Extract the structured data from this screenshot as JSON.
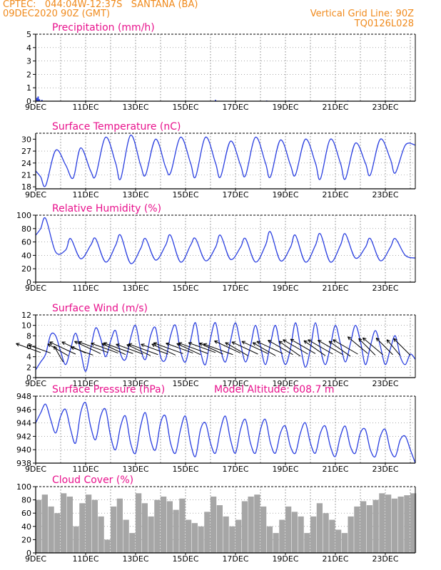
{
  "header": {
    "line1": "CPTEC:   044:04W-12:37S   SANTANA (BA)",
    "line2": "09DEC2020 90Z (GMT)",
    "grid_note": "Vertical Grid Line: 90Z",
    "code": "TQ0126L028"
  },
  "colors": {
    "header": "#f08a1c",
    "title": "#e8118c",
    "line": "#2a3fe0",
    "bar": "#a6a6a6",
    "text": "#000000"
  },
  "x_axis": {
    "labels": [
      "9DEC",
      "11DEC",
      "13DEC",
      "15DEC",
      "17DEC",
      "19DEC",
      "21DEC",
      "23DEC"
    ],
    "day_start": 9,
    "day_end": 24.2
  },
  "chart_data": [
    {
      "type": "bar",
      "title": "Precipitation (mm/h)",
      "ylim": [
        0,
        5
      ],
      "yticks": [
        0,
        1,
        2,
        3,
        4,
        5
      ],
      "x": [
        9.05,
        9.1,
        9.15,
        9.25,
        16.2,
        18.25,
        19.15,
        21.5,
        23.3
      ],
      "values": [
        0.25,
        0.35,
        0.15,
        0.1,
        0.1,
        0.05,
        0.05,
        0.05,
        0.05
      ]
    },
    {
      "type": "line",
      "title": "Surface Temperature (nC)",
      "ylim": [
        17.5,
        31.5
      ],
      "yticks": [
        18,
        21,
        24,
        27,
        30
      ],
      "x": [
        9.0,
        9.2,
        9.4,
        9.8,
        10.2,
        10.5,
        10.8,
        11.2,
        11.4,
        11.8,
        12.2,
        12.4,
        12.8,
        13.2,
        13.4,
        13.8,
        14.2,
        14.4,
        14.8,
        15.2,
        15.4,
        15.8,
        16.2,
        16.4,
        16.8,
        17.2,
        17.4,
        17.8,
        18.2,
        18.4,
        18.8,
        19.2,
        19.4,
        19.8,
        20.2,
        20.4,
        20.8,
        21.2,
        21.4,
        21.8,
        22.2,
        22.4,
        22.8,
        23.2,
        23.4,
        23.8,
        24.2
      ],
      "values": [
        22.0,
        20.5,
        18.3,
        27.2,
        23.5,
        20.2,
        27.8,
        22.0,
        20.8,
        30.5,
        24.0,
        20.0,
        31.0,
        23.5,
        21.0,
        30.0,
        23.0,
        21.5,
        30.5,
        24.0,
        20.5,
        30.5,
        24.0,
        20.5,
        29.5,
        23.5,
        20.8,
        30.5,
        24.0,
        20.5,
        29.8,
        23.5,
        21.0,
        30.0,
        24.0,
        20.0,
        30.0,
        24.0,
        20.0,
        29.0,
        24.0,
        21.0,
        30.0,
        25.0,
        21.5,
        28.5,
        28.5
      ]
    },
    {
      "type": "line",
      "title": "Relative Humidity (%)",
      "ylim": [
        0,
        100
      ],
      "yticks": [
        0,
        20,
        40,
        60,
        80,
        100
      ],
      "x": [
        9.0,
        9.2,
        9.4,
        9.8,
        10.2,
        10.4,
        10.8,
        11.2,
        11.4,
        11.8,
        12.2,
        12.4,
        12.8,
        13.2,
        13.4,
        13.8,
        14.2,
        14.4,
        14.8,
        15.2,
        15.4,
        15.8,
        16.2,
        16.4,
        16.8,
        17.2,
        17.4,
        17.8,
        18.2,
        18.4,
        18.8,
        19.2,
        19.4,
        19.8,
        20.2,
        20.4,
        20.8,
        21.2,
        21.4,
        21.8,
        22.2,
        22.4,
        22.8,
        23.2,
        23.4,
        23.8,
        24.2
      ],
      "values": [
        70,
        80,
        95,
        45,
        48,
        65,
        35,
        55,
        65,
        30,
        55,
        70,
        28,
        50,
        65,
        33,
        55,
        70,
        30,
        55,
        65,
        32,
        52,
        70,
        34,
        52,
        65,
        30,
        55,
        75,
        32,
        52,
        70,
        30,
        55,
        72,
        30,
        55,
        72,
        36,
        52,
        65,
        32,
        52,
        65,
        40,
        36
      ]
    },
    {
      "type": "line",
      "title": "Surface Wind (m/s)",
      "ylim": [
        0,
        12
      ],
      "yticks": [
        0,
        2,
        4,
        6,
        8,
        10,
        12
      ],
      "x": [
        9.0,
        9.2,
        9.4,
        9.6,
        9.8,
        10.0,
        10.2,
        10.4,
        10.6,
        10.8,
        11.0,
        11.2,
        11.4,
        11.6,
        11.8,
        12.0,
        12.2,
        12.4,
        12.6,
        12.8,
        13.0,
        13.2,
        13.4,
        13.6,
        13.8,
        14.0,
        14.2,
        14.4,
        14.6,
        14.8,
        15.0,
        15.2,
        15.4,
        15.6,
        15.8,
        16.0,
        16.2,
        16.4,
        16.6,
        16.8,
        17.0,
        17.2,
        17.4,
        17.6,
        17.8,
        18.0,
        18.2,
        18.4,
        18.6,
        18.8,
        19.0,
        19.2,
        19.4,
        19.6,
        19.8,
        20.0,
        20.2,
        20.4,
        20.6,
        20.8,
        21.0,
        21.2,
        21.4,
        21.6,
        21.8,
        22.0,
        22.2,
        22.4,
        22.6,
        22.8,
        23.0,
        23.2,
        23.4,
        23.6,
        23.8,
        24.0,
        24.2
      ],
      "values": [
        1.5,
        3.0,
        4.5,
        8.2,
        8.0,
        5.0,
        2.5,
        5.5,
        8.5,
        5.0,
        1.2,
        5.5,
        9.5,
        7.5,
        4.0,
        7.0,
        9.0,
        4.5,
        3.5,
        7.5,
        10.0,
        5.5,
        3.5,
        8.0,
        9.5,
        4.0,
        3.5,
        8.0,
        10.0,
        5.0,
        3.0,
        7.0,
        10.5,
        5.0,
        2.5,
        7.5,
        10.5,
        5.5,
        3.0,
        7.0,
        10.5,
        6.5,
        3.0,
        6.0,
        10.0,
        6.0,
        2.5,
        6.5,
        10.0,
        5.5,
        2.5,
        5.5,
        10.5,
        6.0,
        2.0,
        5.5,
        10.5,
        5.5,
        2.5,
        6.0,
        10.0,
        6.5,
        3.0,
        6.5,
        10.0,
        7.0,
        2.5,
        6.0,
        9.0,
        6.0,
        2.5,
        5.5,
        8.0,
        4.0,
        2.5,
        4.5,
        3.5
      ],
      "wind_arrows": {
        "x": [
          9.2,
          9.6,
          10.1,
          10.3,
          10.6,
          11.0,
          11.3,
          11.6,
          11.9,
          12.3,
          12.6,
          12.9,
          13.3,
          13.6,
          13.9,
          14.3,
          14.6,
          14.9,
          15.3,
          15.6,
          15.9,
          16.2,
          16.5,
          16.9,
          17.2,
          17.5,
          17.9,
          18.3,
          18.6,
          18.9,
          19.3,
          19.6,
          19.9,
          20.2,
          20.6,
          20.9,
          21.3,
          21.6,
          21.9,
          22.3,
          22.6,
          22.9,
          23.3,
          23.6,
          24.0
        ],
        "y": [
          4.8,
          4.7,
          3.0,
          4.2,
          4.5,
          4.7,
          4.3,
          4.6,
          4.8,
          4.7,
          4.4,
          4.6,
          4.5,
          4.2,
          4.4,
          4.5,
          4.3,
          4.6,
          4.7,
          4.4,
          4.6,
          4.8,
          4.5,
          4.4,
          4.7,
          4.2,
          4.5,
          4.6,
          4.2,
          4.6,
          4.4,
          4.1,
          4.5,
          4.6,
          4.2,
          4.5,
          4.4,
          4.1,
          4.5,
          4.6,
          4.3,
          4.4,
          4.4,
          4.2,
          4.3
        ],
        "length_ms": [
          5.0,
          4.5,
          3.5,
          4.5,
          5.5,
          5.0,
          4.5,
          5.5,
          6.0,
          5.5,
          5.0,
          6.0,
          5.5,
          5.0,
          6.0,
          5.5,
          5.0,
          6.0,
          5.5,
          5.0,
          6.0,
          5.5,
          5.0,
          6.0,
          5.5,
          5.0,
          5.5,
          5.5,
          5.0,
          5.5,
          5.5,
          5.0,
          5.5,
          5.5,
          5.0,
          5.5,
          5.5,
          5.0,
          5.5,
          5.0,
          4.5,
          5.0,
          4.5,
          4.0,
          4.5
        ],
        "angle_deg": [
          200,
          200,
          240,
          210,
          205,
          205,
          200,
          205,
          200,
          200,
          205,
          200,
          200,
          205,
          200,
          200,
          205,
          200,
          200,
          205,
          200,
          200,
          205,
          200,
          205,
          210,
          205,
          205,
          210,
          205,
          210,
          215,
          210,
          210,
          215,
          210,
          210,
          215,
          210,
          220,
          225,
          220,
          225,
          230,
          225
        ]
      }
    },
    {
      "type": "line",
      "title": "Surface Pressure (hPa)",
      "annotation": "Model Altitude:  608.7  m",
      "ylim": [
        938,
        948
      ],
      "yticks": [
        938,
        940,
        942,
        944,
        946,
        948
      ],
      "x": [
        9.0,
        9.2,
        9.4,
        9.6,
        9.8,
        10.0,
        10.2,
        10.4,
        10.6,
        10.8,
        11.0,
        11.2,
        11.4,
        11.6,
        11.8,
        12.0,
        12.2,
        12.4,
        12.6,
        12.8,
        13.0,
        13.2,
        13.4,
        13.6,
        13.8,
        14.0,
        14.2,
        14.4,
        14.6,
        14.8,
        15.0,
        15.2,
        15.4,
        15.6,
        15.8,
        16.0,
        16.2,
        16.4,
        16.6,
        16.8,
        17.0,
        17.2,
        17.4,
        17.6,
        17.8,
        18.0,
        18.2,
        18.4,
        18.6,
        18.8,
        19.0,
        19.2,
        19.4,
        19.6,
        19.8,
        20.0,
        20.2,
        20.4,
        20.6,
        20.8,
        21.0,
        21.2,
        21.4,
        21.6,
        21.8,
        22.0,
        22.2,
        22.4,
        22.6,
        22.8,
        23.0,
        23.2,
        23.4,
        23.6,
        23.8,
        24.0,
        24.2
      ],
      "values": [
        944.0,
        945.5,
        946.8,
        944.5,
        942.5,
        945.0,
        946.0,
        943.0,
        941.0,
        945.5,
        947.0,
        943.5,
        941.5,
        945.0,
        946.0,
        942.0,
        940.0,
        943.5,
        945.0,
        941.0,
        939.5,
        943.5,
        945.5,
        941.5,
        940.0,
        944.0,
        945.0,
        941.0,
        939.5,
        943.0,
        945.0,
        941.0,
        939.0,
        943.0,
        944.0,
        941.0,
        939.5,
        943.0,
        945.0,
        941.5,
        939.5,
        943.0,
        944.5,
        941.0,
        939.5,
        943.0,
        944.5,
        941.0,
        939.5,
        942.5,
        943.5,
        940.5,
        939.5,
        942.5,
        944.0,
        941.0,
        939.5,
        942.5,
        943.5,
        940.5,
        939.0,
        942.0,
        943.5,
        940.5,
        939.5,
        942.5,
        943.0,
        940.0,
        939.0,
        942.0,
        943.0,
        940.0,
        939.0,
        941.5,
        942.0,
        940.0,
        938.0
      ]
    },
    {
      "type": "bar",
      "title": "Cloud Cover (%)",
      "ylim": [
        0,
        100
      ],
      "yticks": [
        0,
        20,
        40,
        60,
        80,
        100
      ],
      "x": [
        9.0,
        9.25,
        9.5,
        9.75,
        10.0,
        10.25,
        10.5,
        10.75,
        11.0,
        11.25,
        11.5,
        11.75,
        12.0,
        12.25,
        12.5,
        12.75,
        13.0,
        13.25,
        13.5,
        13.75,
        14.0,
        14.25,
        14.5,
        14.75,
        15.0,
        15.25,
        15.5,
        15.75,
        16.0,
        16.25,
        16.5,
        16.75,
        17.0,
        17.25,
        17.5,
        17.75,
        18.0,
        18.25,
        18.5,
        18.75,
        19.0,
        19.25,
        19.5,
        19.75,
        20.0,
        20.25,
        20.5,
        20.75,
        21.0,
        21.25,
        21.5,
        21.75,
        22.0,
        22.25,
        22.5,
        22.75,
        23.0,
        23.25,
        23.5,
        23.75,
        24.0
      ],
      "values": [
        80,
        88,
        70,
        60,
        90,
        85,
        40,
        75,
        88,
        80,
        55,
        20,
        70,
        82,
        50,
        30,
        90,
        75,
        55,
        80,
        85,
        78,
        65,
        82,
        50,
        45,
        40,
        62,
        85,
        72,
        55,
        40,
        50,
        78,
        85,
        88,
        70,
        40,
        30,
        50,
        70,
        62,
        55,
        30,
        55,
        75,
        60,
        50,
        35,
        30,
        55,
        70,
        78,
        72,
        80,
        90,
        88,
        82,
        85,
        87,
        90
      ]
    }
  ]
}
